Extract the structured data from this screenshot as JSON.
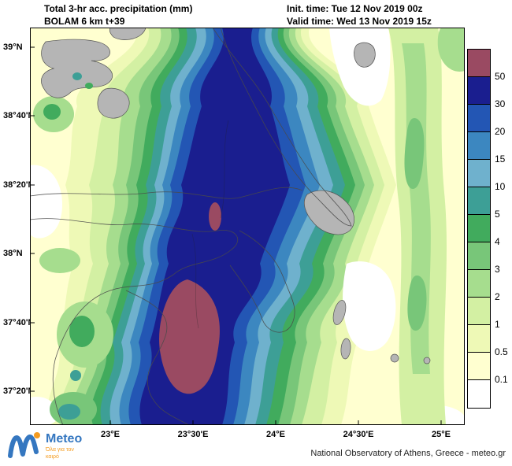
{
  "header": {
    "title": "Total 3-hr acc. precipitation (mm)",
    "model": "BOLAM 6 km t+39",
    "init_time": "Init. time: Tue 12 Nov 2019 00z",
    "valid_time": "Valid time: Wed 13 Nov 2019 15z"
  },
  "map": {
    "lat_labels": [
      "39°N",
      "38°40'N",
      "38°20'N",
      "38°N",
      "37°40'N",
      "37°20'N"
    ],
    "lon_labels": [
      "23°E",
      "23°30'E",
      "24°E",
      "24°30'E",
      "25°E"
    ],
    "land_color": "#b5b5b5"
  },
  "colorbar": {
    "labels": [
      "50",
      "30",
      "20",
      "15",
      "10",
      "5",
      "4",
      "3",
      "2",
      "1",
      "0.5",
      "0.1"
    ],
    "colors": [
      "#9a4a62",
      "#1a1e8f",
      "#2356b4",
      "#3c87c0",
      "#6fb1cd",
      "#3d9f96",
      "#41ab5d",
      "#78c679",
      "#a6dd8e",
      "#d3f0a3",
      "#eef9b6",
      "#ffffd0",
      "#ffffff"
    ]
  },
  "footer": {
    "brand": "Meteo",
    "tagline": "Όλα για τον καιρό",
    "credit": "National Observatory of Athens, Greece - meteo.gr",
    "brand_color": "#3577c0",
    "accent_color": "#f49b1f"
  }
}
